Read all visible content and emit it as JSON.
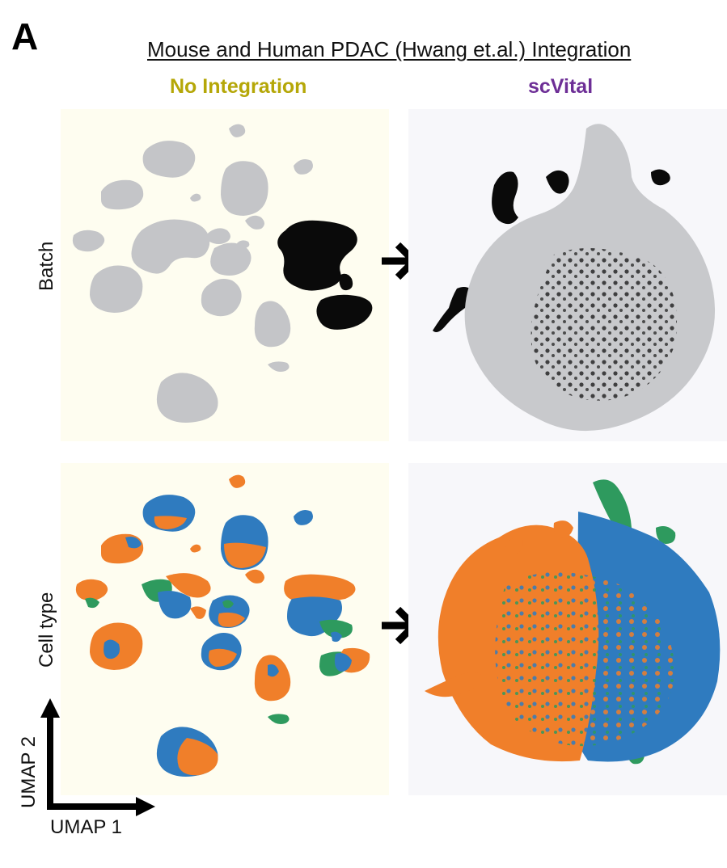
{
  "panel_letter": "A",
  "title": "Mouse and Human PDAC (Hwang et.al.) Integration",
  "columns": {
    "left": "No Integration",
    "right": "scVital"
  },
  "rows": {
    "top": "Batch",
    "bottom": "Cell type"
  },
  "axes": {
    "x": "UMAP 1",
    "y": "UMAP 2"
  },
  "colors": {
    "no_integration_title": "#b5a708",
    "scvital_title": "#6d2e96",
    "batch_grey": "#c4c5c8",
    "batch_black": "#0a0a0a",
    "celltype_orange": "#f07f2a",
    "celltype_blue": "#2f7bbf",
    "celltype_green": "#2e9a5e",
    "left_panel_bg": "#fefdf0",
    "right_panel_bg": "#f7f7fa"
  }
}
